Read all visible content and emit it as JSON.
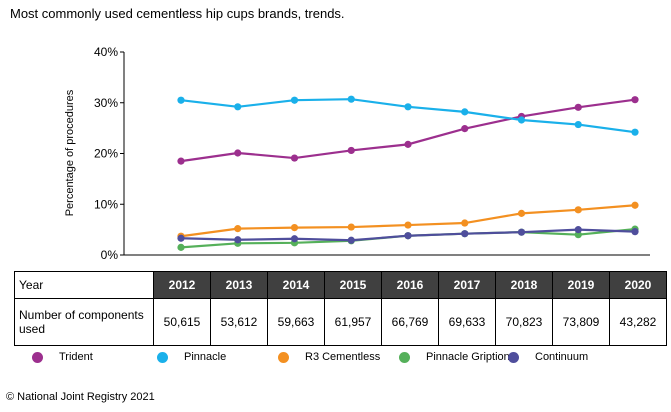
{
  "title": "Most commonly used cementless hip cups brands, trends.",
  "copyright": "© National Joint Registry 2021",
  "table": {
    "year_label": "Year",
    "count_label": "Number of components used",
    "counts": [
      "50,615",
      "53,612",
      "59,663",
      "61,957",
      "66,769",
      "69,633",
      "70,823",
      "73,809",
      "43,282"
    ]
  },
  "chart_data": {
    "type": "line",
    "x": [
      "2012",
      "2013",
      "2014",
      "2015",
      "2016",
      "2017",
      "2018",
      "2019",
      "2020"
    ],
    "ylabel": "Percentage of procedures",
    "xlabel": "",
    "ylim": [
      0,
      40
    ],
    "yticks": [
      "0%",
      "10%",
      "20%",
      "30%",
      "40%"
    ],
    "grid": false,
    "legend_position": "bottom",
    "series": [
      {
        "name": "Trident",
        "color": "#9c2f8e",
        "values": [
          18.5,
          20.1,
          19.1,
          20.6,
          21.8,
          24.9,
          27.3,
          29.1,
          30.6
        ]
      },
      {
        "name": "Pinnacle",
        "color": "#1ab0ea",
        "values": [
          30.5,
          29.2,
          30.5,
          30.7,
          29.2,
          28.2,
          26.6,
          25.7,
          24.2
        ]
      },
      {
        "name": "R3 Cementless",
        "color": "#f39021",
        "values": [
          3.7,
          5.2,
          5.4,
          5.5,
          5.9,
          6.3,
          8.2,
          8.9,
          9.8
        ]
      },
      {
        "name": "Pinnacle Gription",
        "color": "#55b05a",
        "values": [
          1.5,
          2.3,
          2.4,
          2.8,
          3.8,
          4.2,
          4.5,
          4.0,
          5.1
        ]
      },
      {
        "name": "Continuum",
        "color": "#4f4e9c",
        "values": [
          3.3,
          3.0,
          3.2,
          2.9,
          3.8,
          4.2,
          4.5,
          5.0,
          4.6
        ]
      }
    ]
  }
}
